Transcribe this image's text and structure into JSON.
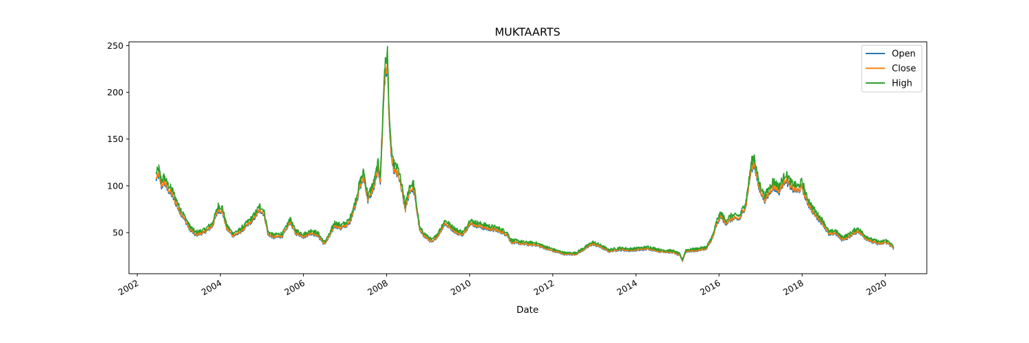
{
  "chart_data": {
    "type": "line",
    "title": "MUKTAARTS",
    "xlabel": "Date",
    "ylabel": "",
    "xlim": [
      2001.8,
      2021.0
    ],
    "ylim": [
      6,
      254
    ],
    "x_ticks": [
      {
        "value": 2002,
        "label": "2002"
      },
      {
        "value": 2004,
        "label": "2004"
      },
      {
        "value": 2006,
        "label": "2006"
      },
      {
        "value": 2008,
        "label": "2008"
      },
      {
        "value": 2010,
        "label": "2010"
      },
      {
        "value": 2012,
        "label": "2012"
      },
      {
        "value": 2014,
        "label": "2014"
      },
      {
        "value": 2016,
        "label": "2016"
      },
      {
        "value": 2018,
        "label": "2018"
      },
      {
        "value": 2020,
        "label": "2020"
      }
    ],
    "y_ticks": [
      {
        "value": 50,
        "label": "50"
      },
      {
        "value": 100,
        "label": "100"
      },
      {
        "value": 150,
        "label": "150"
      },
      {
        "value": 200,
        "label": "200"
      },
      {
        "value": 250,
        "label": "250"
      }
    ],
    "legend_position": "top-right",
    "grid": false,
    "series": [
      {
        "name": "Open",
        "color": "#1f77b4",
        "offset": -1.0,
        "noise": 2.0
      },
      {
        "name": "Close",
        "color": "#ff7f0e",
        "offset": 0.0,
        "noise": 2.0
      },
      {
        "name": "High",
        "color": "#2ca02c",
        "offset": 3.0,
        "noise": 2.6
      }
    ],
    "base_points": [
      [
        2002.45,
        108
      ],
      [
        2002.52,
        113
      ],
      [
        2002.58,
        100
      ],
      [
        2002.65,
        105
      ],
      [
        2002.72,
        98
      ],
      [
        2002.85,
        90
      ],
      [
        2003.0,
        75
      ],
      [
        2003.12,
        66
      ],
      [
        2003.25,
        55
      ],
      [
        2003.4,
        48
      ],
      [
        2003.6,
        50
      ],
      [
        2003.8,
        57
      ],
      [
        2003.95,
        75
      ],
      [
        2004.05,
        73
      ],
      [
        2004.15,
        55
      ],
      [
        2004.3,
        47
      ],
      [
        2004.45,
        50
      ],
      [
        2004.6,
        56
      ],
      [
        2004.8,
        65
      ],
      [
        2004.95,
        75
      ],
      [
        2005.05,
        70
      ],
      [
        2005.15,
        48
      ],
      [
        2005.3,
        45
      ],
      [
        2005.5,
        47
      ],
      [
        2005.6,
        55
      ],
      [
        2005.68,
        62
      ],
      [
        2005.8,
        50
      ],
      [
        2006.0,
        46
      ],
      [
        2006.2,
        50
      ],
      [
        2006.35,
        47
      ],
      [
        2006.5,
        38
      ],
      [
        2006.6,
        44
      ],
      [
        2006.75,
        58
      ],
      [
        2006.9,
        55
      ],
      [
        2007.1,
        60
      ],
      [
        2007.25,
        80
      ],
      [
        2007.35,
        98
      ],
      [
        2007.45,
        110
      ],
      [
        2007.55,
        85
      ],
      [
        2007.7,
        100
      ],
      [
        2007.8,
        120
      ],
      [
        2007.85,
        105
      ],
      [
        2007.95,
        215
      ],
      [
        2008.02,
        230
      ],
      [
        2008.08,
        150
      ],
      [
        2008.15,
        120
      ],
      [
        2008.3,
        110
      ],
      [
        2008.45,
        75
      ],
      [
        2008.55,
        95
      ],
      [
        2008.65,
        98
      ],
      [
        2008.8,
        52
      ],
      [
        2008.95,
        45
      ],
      [
        2009.1,
        40
      ],
      [
        2009.25,
        48
      ],
      [
        2009.4,
        60
      ],
      [
        2009.55,
        55
      ],
      [
        2009.7,
        50
      ],
      [
        2009.85,
        48
      ],
      [
        2010.0,
        60
      ],
      [
        2010.15,
        58
      ],
      [
        2010.4,
        55
      ],
      [
        2010.7,
        52
      ],
      [
        2010.9,
        48
      ],
      [
        2011.0,
        40
      ],
      [
        2011.3,
        38
      ],
      [
        2011.6,
        37
      ],
      [
        2011.85,
        33
      ],
      [
        2012.05,
        30
      ],
      [
        2012.3,
        27
      ],
      [
        2012.55,
        27
      ],
      [
        2012.75,
        32
      ],
      [
        2012.95,
        38
      ],
      [
        2013.15,
        35
      ],
      [
        2013.35,
        30
      ],
      [
        2013.6,
        32
      ],
      [
        2013.85,
        31
      ],
      [
        2014.1,
        32
      ],
      [
        2014.3,
        33
      ],
      [
        2014.6,
        30
      ],
      [
        2014.9,
        29
      ],
      [
        2015.05,
        26
      ],
      [
        2015.12,
        20
      ],
      [
        2015.2,
        30
      ],
      [
        2015.45,
        31
      ],
      [
        2015.7,
        33
      ],
      [
        2015.85,
        45
      ],
      [
        2015.95,
        60
      ],
      [
        2016.05,
        68
      ],
      [
        2016.15,
        60
      ],
      [
        2016.3,
        65
      ],
      [
        2016.5,
        65
      ],
      [
        2016.65,
        80
      ],
      [
        2016.78,
        120
      ],
      [
        2016.85,
        125
      ],
      [
        2016.95,
        100
      ],
      [
        2017.1,
        85
      ],
      [
        2017.3,
        100
      ],
      [
        2017.45,
        95
      ],
      [
        2017.6,
        108
      ],
      [
        2017.75,
        98
      ],
      [
        2017.9,
        95
      ],
      [
        2018.0,
        100
      ],
      [
        2018.1,
        85
      ],
      [
        2018.3,
        70
      ],
      [
        2018.5,
        60
      ],
      [
        2018.65,
        48
      ],
      [
        2018.8,
        50
      ],
      [
        2018.95,
        43
      ],
      [
        2019.1,
        45
      ],
      [
        2019.25,
        50
      ],
      [
        2019.35,
        52
      ],
      [
        2019.5,
        45
      ],
      [
        2019.7,
        40
      ],
      [
        2019.9,
        38
      ],
      [
        2020.0,
        40
      ],
      [
        2020.1,
        38
      ],
      [
        2020.2,
        33
      ]
    ]
  }
}
